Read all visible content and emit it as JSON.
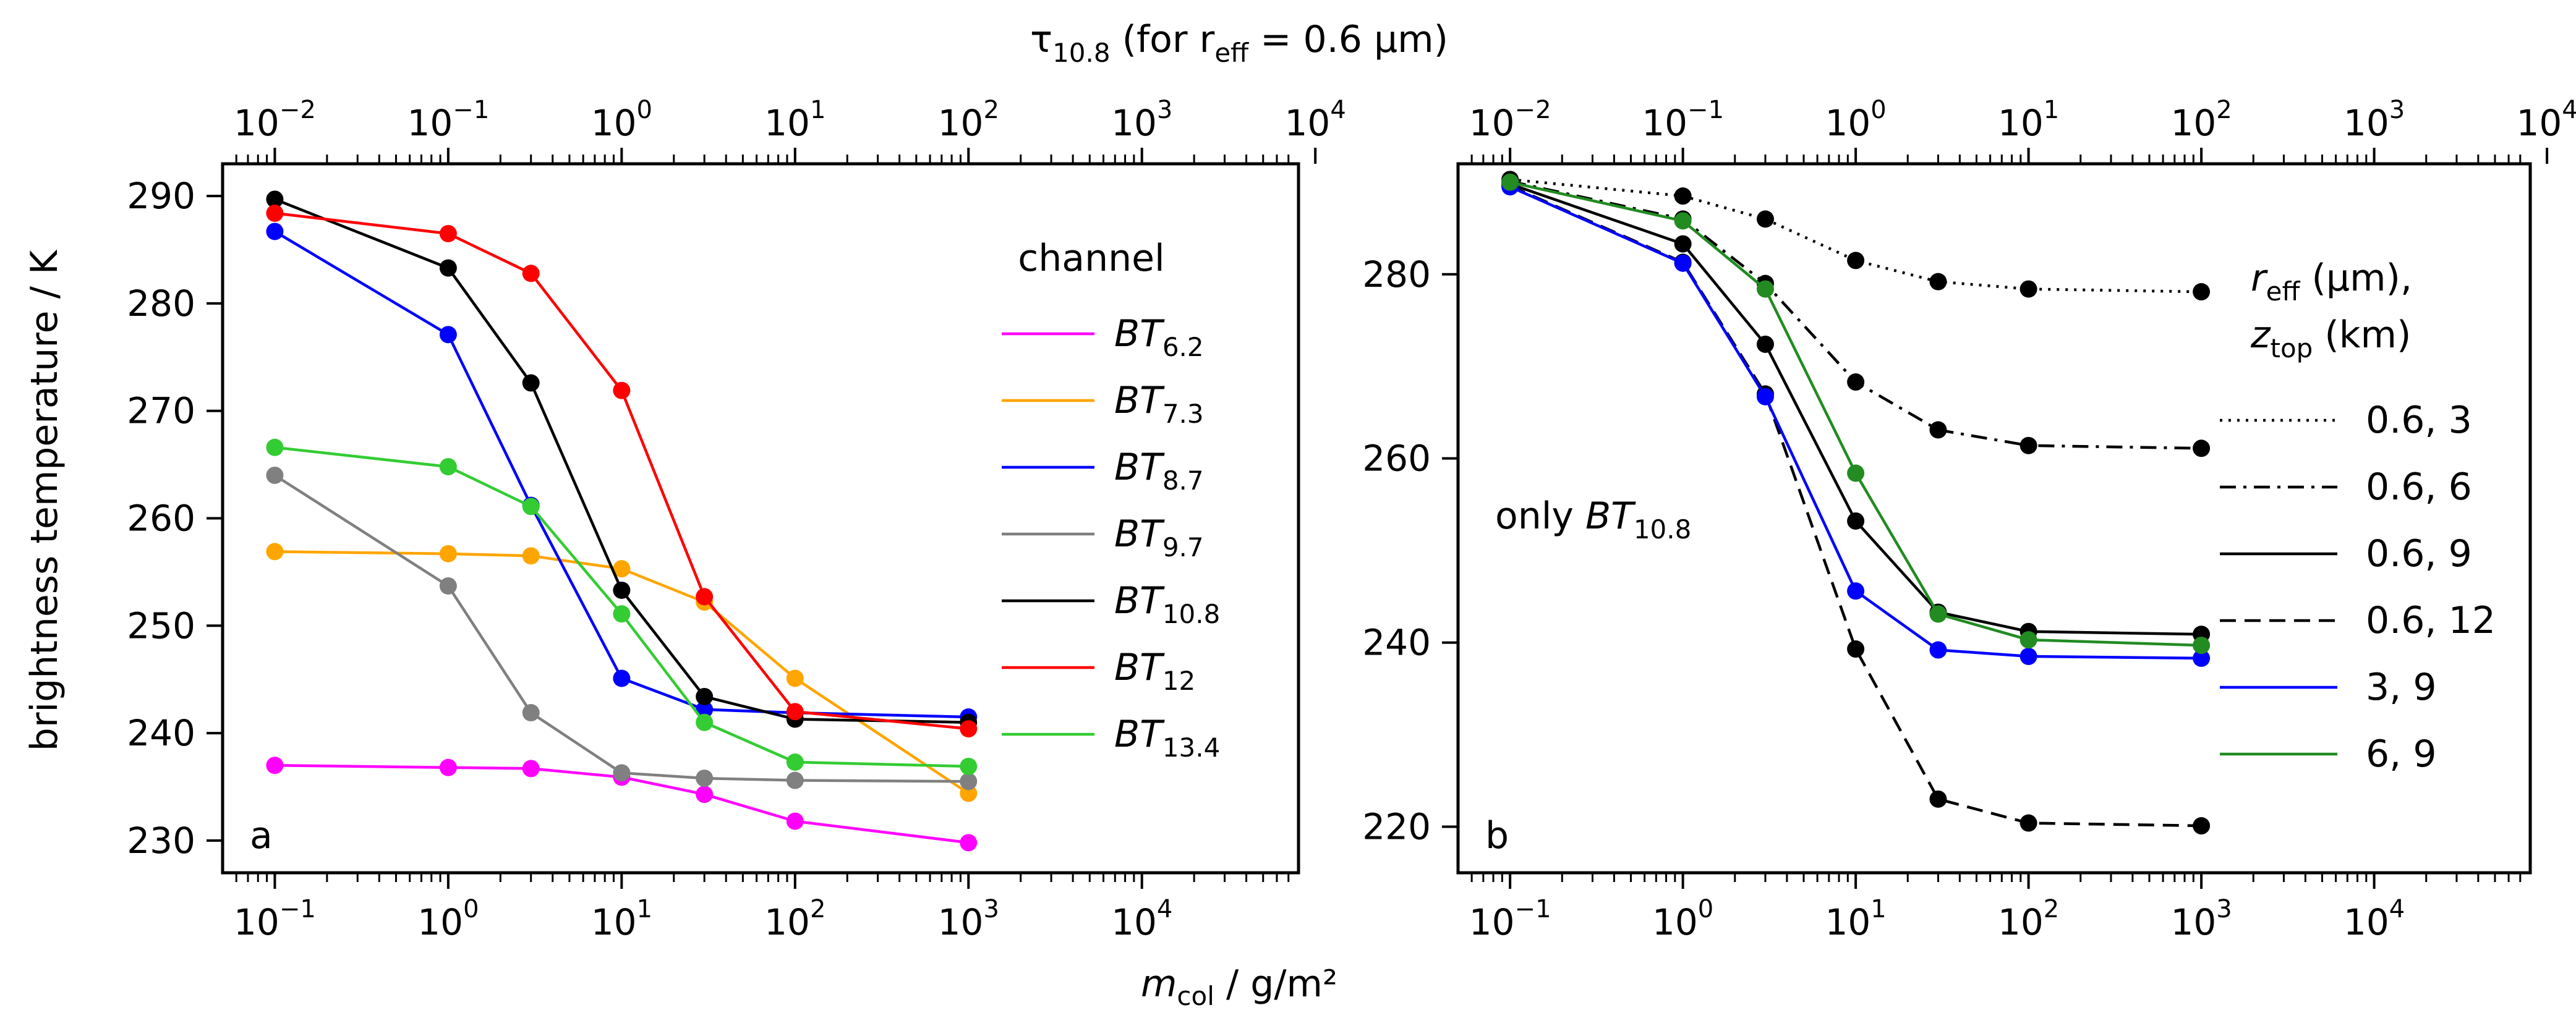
{
  "chart_data": [
    {
      "type": "line",
      "panel_label": "a",
      "xscale": "log",
      "xlim": [
        0.05,
        80000
      ],
      "ylim": [
        227,
        293
      ],
      "ylabel": "brightness temperature / K",
      "xlabel_main": "m",
      "xlabel_sub": "col",
      "xlabel_tail": " / g/m²",
      "top_axis": {
        "label_prefix": "τ",
        "label_sub": "10.8",
        "label_mid": " (for r",
        "label_sub2": "eff",
        "label_tail": " = 0.6 μm)",
        "ticks": [
          {
            "base": "10",
            "exp": "−2"
          },
          {
            "base": "10",
            "exp": "−1"
          },
          {
            "base": "10",
            "exp": "0"
          },
          {
            "base": "10",
            "exp": "1"
          },
          {
            "base": "10",
            "exp": "2"
          },
          {
            "base": "10",
            "exp": "3"
          },
          {
            "base": "10",
            "exp": "4"
          }
        ]
      },
      "x_ticks": [
        {
          "base": "10",
          "exp": "−1"
        },
        {
          "base": "10",
          "exp": "0"
        },
        {
          "base": "10",
          "exp": "1"
        },
        {
          "base": "10",
          "exp": "2"
        },
        {
          "base": "10",
          "exp": "3"
        },
        {
          "base": "10",
          "exp": "4"
        }
      ],
      "y_ticks": [
        230,
        240,
        250,
        260,
        270,
        280,
        290
      ],
      "x": [
        0.1,
        1,
        3,
        10,
        30,
        100,
        1000
      ],
      "legend_title": "channel",
      "legend_position": "right",
      "series": [
        {
          "name": "BT",
          "sub": "6.2",
          "color": "#ff00ff",
          "dash": "solid",
          "values": [
            237.0,
            236.8,
            236.7,
            235.9,
            234.3,
            231.8,
            229.8
          ]
        },
        {
          "name": "BT",
          "sub": "7.3",
          "color": "#ffa500",
          "dash": "solid",
          "values": [
            256.9,
            256.7,
            256.5,
            255.3,
            252.2,
            245.1,
            234.4
          ]
        },
        {
          "name": "BT",
          "sub": "8.7",
          "color": "#0000ff",
          "dash": "solid",
          "values": [
            286.7,
            277.1,
            261.2,
            245.1,
            242.2,
            241.9,
            241.5
          ]
        },
        {
          "name": "BT",
          "sub": "9.7",
          "color": "#808080",
          "dash": "solid",
          "values": [
            264.0,
            253.7,
            241.9,
            236.3,
            235.8,
            235.6,
            235.5
          ]
        },
        {
          "name": "BT",
          "sub": "10.8",
          "color": "#000000",
          "dash": "solid",
          "values": [
            289.7,
            283.3,
            272.6,
            253.3,
            243.4,
            241.3,
            241.0
          ]
        },
        {
          "name": "BT",
          "sub": "12",
          "color": "#ff0000",
          "dash": "solid",
          "values": [
            288.4,
            286.5,
            282.8,
            271.9,
            252.7,
            242.0,
            240.4
          ]
        },
        {
          "name": "BT",
          "sub": "13.4",
          "color": "#33cc33",
          "dash": "solid",
          "values": [
            266.6,
            264.8,
            261.1,
            251.1,
            241.0,
            237.3,
            236.9
          ]
        }
      ]
    },
    {
      "type": "line",
      "panel_label": "b",
      "xscale": "log",
      "xlim": [
        0.05,
        80000
      ],
      "ylim": [
        215,
        292
      ],
      "annotation_prefix": "only ",
      "annotation_main": "BT",
      "annotation_sub": "10.8",
      "top_axis": {
        "ticks": [
          {
            "base": "10",
            "exp": "−2"
          },
          {
            "base": "10",
            "exp": "−1"
          },
          {
            "base": "10",
            "exp": "0"
          },
          {
            "base": "10",
            "exp": "1"
          },
          {
            "base": "10",
            "exp": "2"
          },
          {
            "base": "10",
            "exp": "3"
          },
          {
            "base": "10",
            "exp": "4"
          }
        ]
      },
      "x_ticks": [
        {
          "base": "10",
          "exp": "−1"
        },
        {
          "base": "10",
          "exp": "0"
        },
        {
          "base": "10",
          "exp": "1"
        },
        {
          "base": "10",
          "exp": "2"
        },
        {
          "base": "10",
          "exp": "3"
        },
        {
          "base": "10",
          "exp": "4"
        }
      ],
      "y_ticks": [
        220,
        240,
        260,
        280
      ],
      "x": [
        0.1,
        1,
        3,
        10,
        30,
        100,
        1000
      ],
      "legend_title_line1_main": "r",
      "legend_title_line1_sub": "eff",
      "legend_title_line1_tail": " (μm),",
      "legend_title_line2_main": "z",
      "legend_title_line2_sub": "top",
      "legend_title_line2_tail": " (km)",
      "legend_position": "right",
      "series": [
        {
          "name": "0.6, 3",
          "color": "#000000",
          "dash": "dotted",
          "values": [
            290.3,
            288.5,
            286.0,
            281.5,
            279.2,
            278.4,
            278.1
          ]
        },
        {
          "name": "0.6, 6",
          "color": "#000000",
          "dash": "dashdot",
          "values": [
            290.1,
            286.0,
            279.0,
            268.3,
            263.1,
            261.4,
            261.1
          ]
        },
        {
          "name": "0.6, 9",
          "color": "#000000",
          "dash": "solid",
          "values": [
            289.8,
            283.3,
            272.4,
            253.2,
            243.3,
            241.2,
            240.9
          ]
        },
        {
          "name": "0.6, 12",
          "color": "#000000",
          "dash": "dashed",
          "values": [
            289.6,
            281.3,
            267.0,
            239.3,
            223.0,
            220.4,
            220.1
          ]
        },
        {
          "name": "3, 9",
          "color": "#0000ff",
          "dash": "solid",
          "values": [
            289.5,
            281.2,
            266.7,
            245.6,
            239.2,
            238.5,
            238.3
          ]
        },
        {
          "name": "6, 9",
          "color": "#228b22",
          "dash": "solid",
          "values": [
            290.0,
            285.8,
            278.4,
            258.4,
            243.1,
            240.3,
            239.7
          ]
        }
      ]
    }
  ]
}
